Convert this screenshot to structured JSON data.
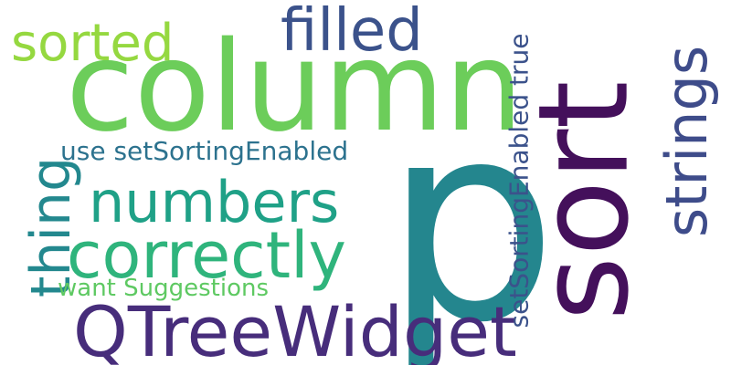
{
  "words": [
    {
      "text": "p",
      "color": "#24868e"
    },
    {
      "text": "column",
      "color": "#6ccd5a"
    },
    {
      "text": "sort",
      "color": "#44105b"
    },
    {
      "text": "QTreeWidget",
      "color": "#472d7b"
    },
    {
      "text": "correctly",
      "color": "#2fb47c"
    },
    {
      "text": "numbers",
      "color": "#1fa187"
    },
    {
      "text": "filled",
      "color": "#3b528b"
    },
    {
      "text": "sorted",
      "color": "#95d840"
    },
    {
      "text": "strings",
      "color": "#3e4c8a"
    },
    {
      "text": "thing",
      "color": "#23888e"
    },
    {
      "text": "use setSortingEnabled",
      "color": "#2c728e"
    },
    {
      "text": "setSortingEnabled true",
      "color": "#3b528b"
    },
    {
      "text": "want Suggestions",
      "color": "#5ec962"
    }
  ]
}
